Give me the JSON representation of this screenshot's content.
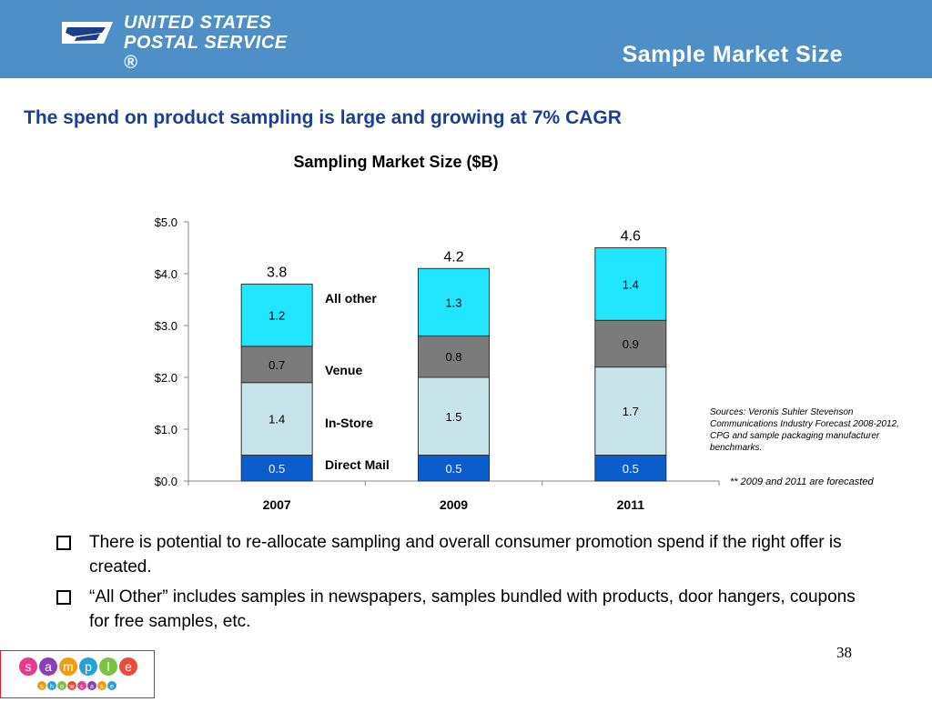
{
  "header": {
    "brand_line1": "UNITED STATES",
    "brand_line2": "POSTAL SERVICE ®",
    "slide_title": "Sample Market Size"
  },
  "subtitle": "The spend on product sampling is large and growing at 7% CAGR",
  "chart_data": {
    "type": "bar",
    "stacked": true,
    "title": "Sampling Market Size ($B)",
    "categories": [
      "2007",
      "2009",
      "2011"
    ],
    "series": [
      {
        "name": "Direct Mail",
        "values": [
          0.5,
          0.5,
          0.5
        ],
        "color": "#0b5ccf"
      },
      {
        "name": "In-Store",
        "values": [
          1.4,
          1.5,
          1.7
        ],
        "color": "#c6e4ea"
      },
      {
        "name": "Venue",
        "values": [
          0.7,
          0.8,
          0.9
        ],
        "color": "#7b7b7b"
      },
      {
        "name": "All other",
        "values": [
          1.2,
          1.3,
          1.4
        ],
        "color": "#22e5ff"
      }
    ],
    "series_label_text": [
      "0.5",
      "0.5",
      "0.5",
      "1.4",
      "1.5",
      "1.7",
      "0.7",
      "0.8",
      "0.9",
      "1.2",
      "1.3",
      "1.4"
    ],
    "totals": [
      3.8,
      4.2,
      4.6
    ],
    "total_labels": [
      "3.8",
      "4.2",
      "4.6"
    ],
    "yticks": [
      "$0.0",
      "$1.0",
      "$2.0",
      "$3.0",
      "$4.0",
      "$5.0"
    ],
    "ylim": [
      0,
      5
    ],
    "xlabel": "",
    "ylabel": "",
    "legend": "inline between first and second bars"
  },
  "sources": "Sources:  Veronis Suhler Stevenson Communications Industry Forecast 2008-2012, CPG and sample packaging manufacturer benchmarks.",
  "forecast_note": "** 2009 and 2011 are forecasted",
  "bullets": [
    "There is potential to re-allocate sampling and overall consumer promotion spend if the right offer is created.",
    "“All Other” includes samples in newspapers, samples bundled with products, door hangers, coupons for free samples, etc."
  ],
  "page_number": "38",
  "footer_logo": {
    "word1": "sample",
    "word2": "showcase"
  }
}
